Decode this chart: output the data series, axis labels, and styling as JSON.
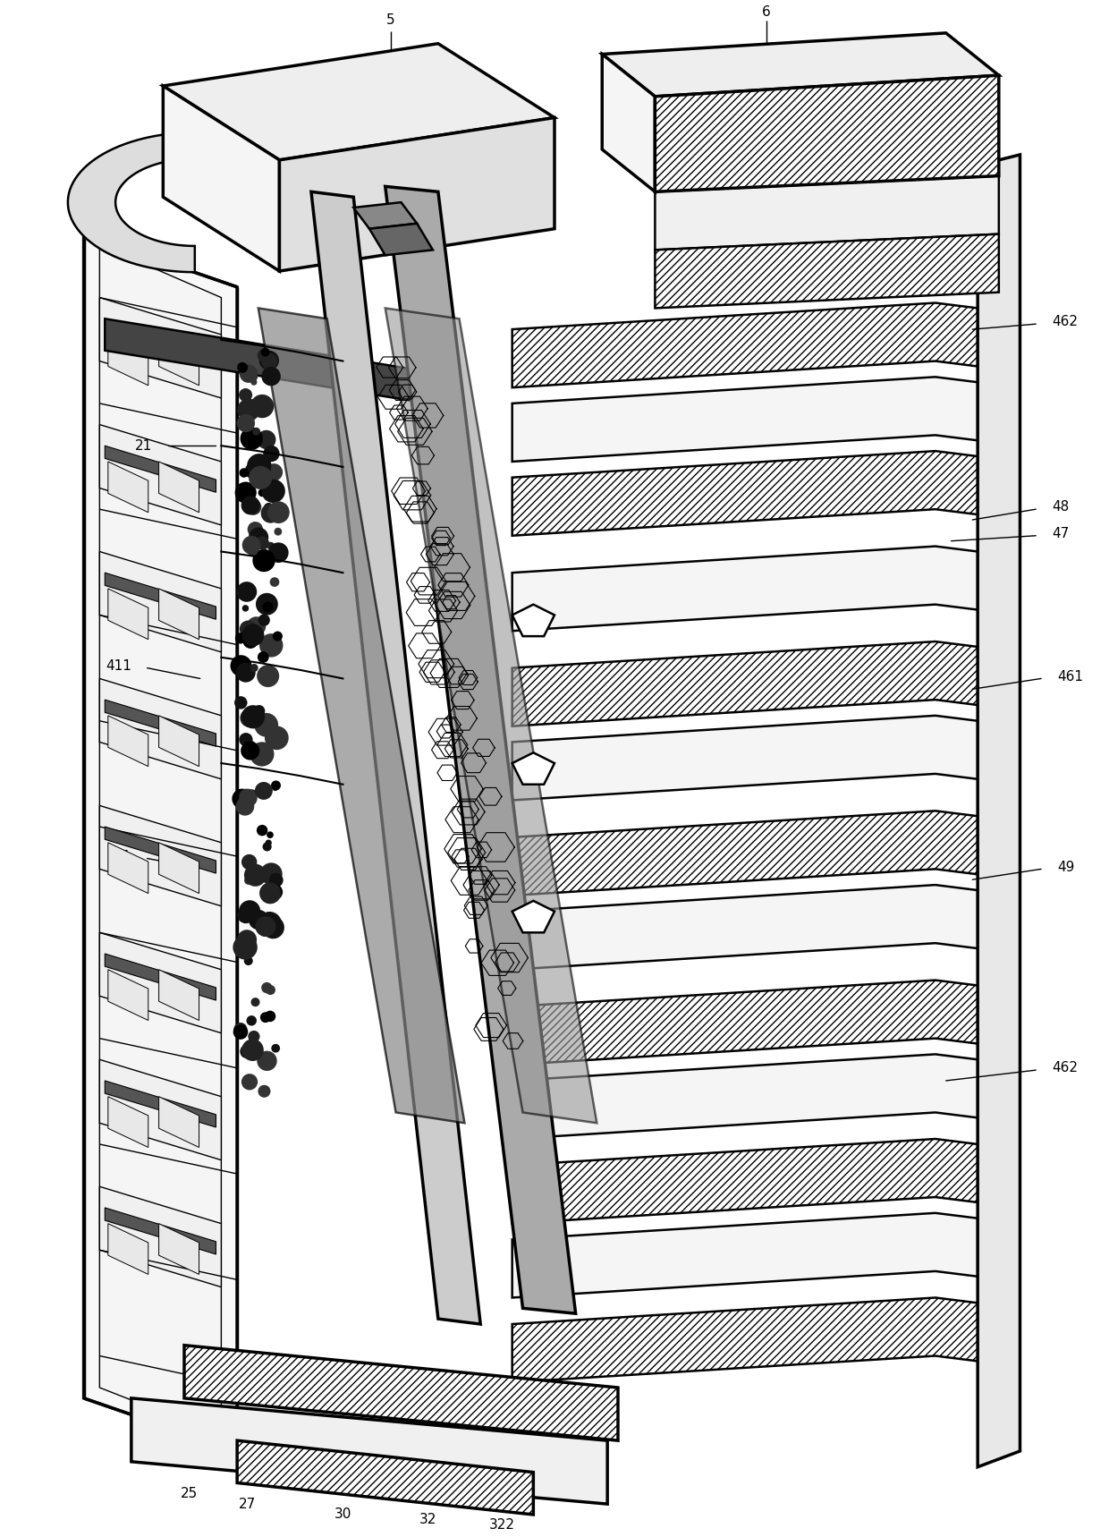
{
  "background_color": "#ffffff",
  "line_color": "#000000",
  "figure_width": 12.4,
  "figure_height": 17.18,
  "dpi": 100,
  "label_fs": 11,
  "lw_main": 1.8,
  "lw_thick": 2.5,
  "lw_thin": 1.0
}
